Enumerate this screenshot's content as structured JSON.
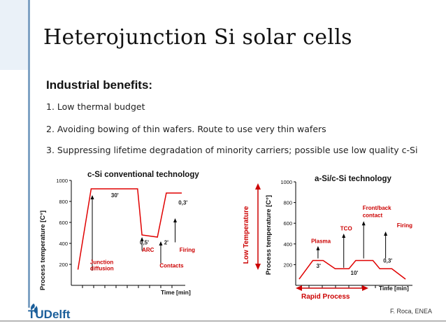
{
  "slide": {
    "title": "Heterojunction Si solar cells",
    "subtitle": "Industrial benefits:",
    "bullets": [
      "1. Low thermal budget",
      "2. Avoiding bowing of thin wafers. Route to use very thin wafers",
      "3. Suppressing lifetime degradation of minority carriers; possible use low quality c-Si"
    ],
    "credit": "F. Roca, ENEA",
    "logo_text": "TUDelft"
  },
  "colors": {
    "sidebar": "#eaf1f8",
    "sidebar_line": "#7fa2c4",
    "curve": "#e00000",
    "annotation": "#cc0000",
    "arrow": "#000000",
    "logo_blue": "#1a5e9a"
  },
  "chart_data": [
    {
      "type": "line",
      "title": "c-Si conventional technology",
      "ylabel": "Process temperature [C°]",
      "xlabel": "Time [min]",
      "ylim": [
        0,
        1000
      ],
      "yticks": [
        200,
        400,
        600,
        800,
        1000
      ],
      "series": [
        {
          "x": [
            0.3,
            0.9,
            3.0,
            3.2,
            3.9,
            4.3,
            4.55,
            5.0
          ],
          "y": [
            150,
            920,
            920,
            480,
            460,
            880,
            880,
            880
          ]
        }
      ],
      "annotations": [
        {
          "text": "30'",
          "x": 1.8,
          "y": 840,
          "color": "dark"
        },
        {
          "text": "Junction",
          "x": 0.85,
          "y": 205,
          "color": "red"
        },
        {
          "text": "diffusion",
          "x": 0.85,
          "y": 145,
          "color": "red"
        },
        {
          "text": "0,5'",
          "x": 3.1,
          "y": 390,
          "color": "dark"
        },
        {
          "text": "ARC",
          "x": 3.2,
          "y": 320,
          "color": "red"
        },
        {
          "text": "2'",
          "x": 4.2,
          "y": 390,
          "color": "dark"
        },
        {
          "text": "Contacts",
          "x": 4.0,
          "y": 170,
          "color": "red"
        },
        {
          "text": "0,3'",
          "x": 4.85,
          "y": 770,
          "color": "dark"
        },
        {
          "text": "Firing",
          "x": 4.9,
          "y": 320,
          "color": "red"
        }
      ]
    },
    {
      "type": "line",
      "title": "a-Si/c-Si  technology",
      "ylabel": "Process temperature [C°]",
      "xlabel": "Time [min]",
      "ylim": [
        0,
        1000
      ],
      "yticks": [
        200,
        400,
        600,
        800,
        1000
      ],
      "side_label": "Low Temperature",
      "bottom_label": "Rapid Process",
      "series": [
        {
          "x": [
            0.1,
            0.5,
            0.8,
            1.15,
            1.55,
            1.75,
            2.25,
            2.45,
            2.8,
            3.2
          ],
          "y": [
            60,
            240,
            240,
            160,
            160,
            240,
            240,
            160,
            160,
            60
          ]
        }
      ],
      "annotations": [
        {
          "text": "Plasma",
          "x": 0.45,
          "y": 410,
          "color": "red"
        },
        {
          "text": "3'",
          "x": 0.6,
          "y": 170,
          "color": "dark"
        },
        {
          "text": "TCO",
          "x": 1.3,
          "y": 530,
          "color": "red"
        },
        {
          "text": "10'",
          "x": 1.6,
          "y": 100,
          "color": "dark"
        },
        {
          "text": "Front/back",
          "x": 1.95,
          "y": 730,
          "color": "red"
        },
        {
          "text": "contact",
          "x": 1.95,
          "y": 660,
          "color": "red"
        },
        {
          "text": "Firing",
          "x": 2.95,
          "y": 560,
          "color": "red"
        },
        {
          "text": "0,3'",
          "x": 2.55,
          "y": 220,
          "color": "dark"
        }
      ]
    }
  ]
}
